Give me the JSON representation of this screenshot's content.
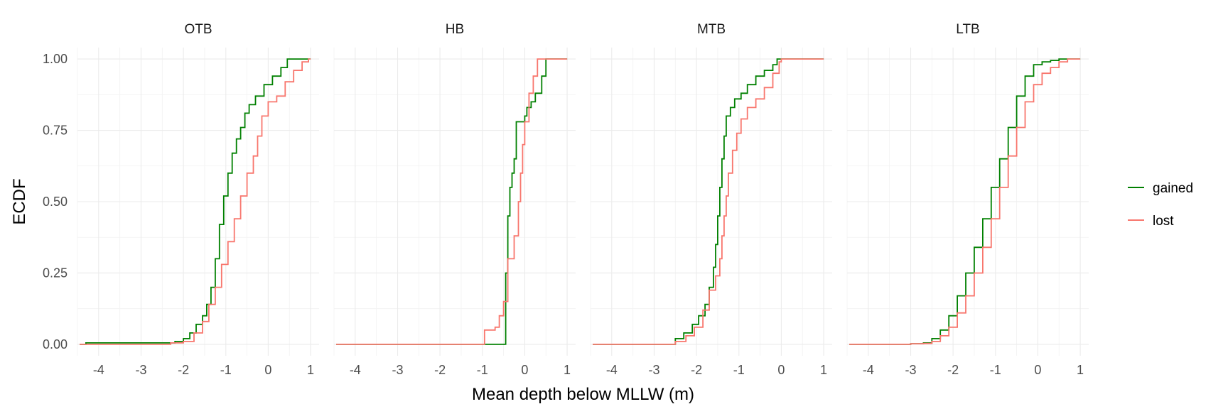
{
  "chart_data": {
    "type": "ecdf",
    "xlabel": "Mean depth below MLLW (m)",
    "ylabel": "ECDF",
    "xlim": [
      -4.5,
      1.2
    ],
    "ylim": [
      -0.04,
      1.04
    ],
    "x_ticks": [
      -4,
      -3,
      -2,
      -1,
      0,
      1
    ],
    "x_tick_labels": [
      "-4",
      "-3",
      "-2",
      "-1",
      "0",
      "1"
    ],
    "y_ticks": [
      0,
      0.25,
      0.5,
      0.75,
      1
    ],
    "y_tick_labels": [
      "0.00",
      "0.25",
      "0.50",
      "0.75",
      "1.00"
    ],
    "legend": {
      "position": "right",
      "entries": [
        "gained",
        "lost"
      ]
    },
    "colors": {
      "gained": "#008000",
      "lost": "#f8766d"
    },
    "panels": [
      {
        "title": "OTB",
        "series": [
          {
            "name": "gained",
            "points": [
              [
                -4.45,
                0.0
              ],
              [
                -4.3,
                0.005
              ],
              [
                -2.75,
                0.005
              ],
              [
                -2.2,
                0.01
              ],
              [
                -2.0,
                0.02
              ],
              [
                -1.85,
                0.04
              ],
              [
                -1.7,
                0.07
              ],
              [
                -1.55,
                0.1
              ],
              [
                -1.45,
                0.14
              ],
              [
                -1.35,
                0.2
              ],
              [
                -1.25,
                0.3
              ],
              [
                -1.15,
                0.42
              ],
              [
                -1.05,
                0.52
              ],
              [
                -0.95,
                0.6
              ],
              [
                -0.85,
                0.67
              ],
              [
                -0.75,
                0.72
              ],
              [
                -0.65,
                0.76
              ],
              [
                -0.55,
                0.81
              ],
              [
                -0.45,
                0.84
              ],
              [
                -0.3,
                0.87
              ],
              [
                -0.1,
                0.91
              ],
              [
                0.1,
                0.94
              ],
              [
                0.3,
                0.97
              ],
              [
                0.45,
                1.0
              ],
              [
                1.0,
                1.0
              ]
            ]
          },
          {
            "name": "lost",
            "points": [
              [
                -4.45,
                0.0
              ],
              [
                -2.8,
                0.0
              ],
              [
                -2.3,
                0.005
              ],
              [
                -2.0,
                0.01
              ],
              [
                -1.75,
                0.04
              ],
              [
                -1.55,
                0.08
              ],
              [
                -1.4,
                0.14
              ],
              [
                -1.25,
                0.2
              ],
              [
                -1.1,
                0.28
              ],
              [
                -0.95,
                0.36
              ],
              [
                -0.8,
                0.44
              ],
              [
                -0.65,
                0.52
              ],
              [
                -0.5,
                0.6
              ],
              [
                -0.35,
                0.66
              ],
              [
                -0.25,
                0.73
              ],
              [
                -0.15,
                0.8
              ],
              [
                0.0,
                0.85
              ],
              [
                0.2,
                0.87
              ],
              [
                0.4,
                0.92
              ],
              [
                0.6,
                0.96
              ],
              [
                0.8,
                0.99
              ],
              [
                0.95,
                1.0
              ],
              [
                1.0,
                1.0
              ]
            ]
          }
        ]
      },
      {
        "title": "HB",
        "series": [
          {
            "name": "gained",
            "points": [
              [
                -4.45,
                0.0
              ],
              [
                -0.48,
                0.0
              ],
              [
                -0.45,
                0.25
              ],
              [
                -0.4,
                0.45
              ],
              [
                -0.35,
                0.55
              ],
              [
                -0.3,
                0.6
              ],
              [
                -0.25,
                0.65
              ],
              [
                -0.2,
                0.78
              ],
              [
                0.0,
                0.8
              ],
              [
                0.05,
                0.83
              ],
              [
                0.15,
                0.85
              ],
              [
                0.25,
                0.88
              ],
              [
                0.4,
                0.94
              ],
              [
                0.5,
                1.0
              ],
              [
                1.0,
                1.0
              ]
            ]
          },
          {
            "name": "lost",
            "points": [
              [
                -4.45,
                0.0
              ],
              [
                -1.0,
                0.0
              ],
              [
                -0.95,
                0.05
              ],
              [
                -0.7,
                0.06
              ],
              [
                -0.6,
                0.1
              ],
              [
                -0.5,
                0.15
              ],
              [
                -0.4,
                0.3
              ],
              [
                -0.25,
                0.38
              ],
              [
                -0.15,
                0.5
              ],
              [
                -0.1,
                0.6
              ],
              [
                -0.05,
                0.7
              ],
              [
                0.0,
                0.78
              ],
              [
                0.1,
                0.88
              ],
              [
                0.2,
                0.94
              ],
              [
                0.3,
                1.0
              ],
              [
                1.0,
                1.0
              ]
            ]
          }
        ]
      },
      {
        "title": "MTB",
        "series": [
          {
            "name": "gained",
            "points": [
              [
                -4.45,
                0.0
              ],
              [
                -2.65,
                0.0
              ],
              [
                -2.5,
                0.02
              ],
              [
                -2.3,
                0.04
              ],
              [
                -2.1,
                0.07
              ],
              [
                -1.95,
                0.1
              ],
              [
                -1.8,
                0.14
              ],
              [
                -1.7,
                0.2
              ],
              [
                -1.6,
                0.27
              ],
              [
                -1.55,
                0.35
              ],
              [
                -1.5,
                0.45
              ],
              [
                -1.45,
                0.55
              ],
              [
                -1.4,
                0.65
              ],
              [
                -1.35,
                0.73
              ],
              [
                -1.3,
                0.8
              ],
              [
                -1.2,
                0.83
              ],
              [
                -1.1,
                0.86
              ],
              [
                -0.95,
                0.88
              ],
              [
                -0.8,
                0.91
              ],
              [
                -0.6,
                0.94
              ],
              [
                -0.4,
                0.96
              ],
              [
                -0.2,
                0.98
              ],
              [
                -0.1,
                1.0
              ],
              [
                1.0,
                1.0
              ]
            ]
          },
          {
            "name": "lost",
            "points": [
              [
                -4.45,
                0.0
              ],
              [
                -2.7,
                0.0
              ],
              [
                -2.5,
                0.01
              ],
              [
                -2.25,
                0.03
              ],
              [
                -2.05,
                0.06
              ],
              [
                -1.85,
                0.12
              ],
              [
                -1.7,
                0.19
              ],
              [
                -1.55,
                0.24
              ],
              [
                -1.45,
                0.3
              ],
              [
                -1.4,
                0.38
              ],
              [
                -1.35,
                0.45
              ],
              [
                -1.3,
                0.52
              ],
              [
                -1.25,
                0.6
              ],
              [
                -1.15,
                0.68
              ],
              [
                -1.05,
                0.74
              ],
              [
                -0.95,
                0.79
              ],
              [
                -0.8,
                0.83
              ],
              [
                -0.6,
                0.86
              ],
              [
                -0.4,
                0.9
              ],
              [
                -0.2,
                0.95
              ],
              [
                -0.05,
                0.99
              ],
              [
                0.0,
                1.0
              ],
              [
                1.0,
                1.0
              ]
            ]
          }
        ]
      },
      {
        "title": "LTB",
        "series": [
          {
            "name": "gained",
            "points": [
              [
                -4.45,
                0.0
              ],
              [
                -3.3,
                0.0
              ],
              [
                -3.0,
                0.002
              ],
              [
                -2.7,
                0.005
              ],
              [
                -2.5,
                0.02
              ],
              [
                -2.3,
                0.05
              ],
              [
                -2.1,
                0.1
              ],
              [
                -1.9,
                0.17
              ],
              [
                -1.7,
                0.25
              ],
              [
                -1.5,
                0.34
              ],
              [
                -1.3,
                0.44
              ],
              [
                -1.1,
                0.55
              ],
              [
                -0.9,
                0.65
              ],
              [
                -0.7,
                0.76
              ],
              [
                -0.5,
                0.87
              ],
              [
                -0.3,
                0.94
              ],
              [
                -0.1,
                0.98
              ],
              [
                0.1,
                0.99
              ],
              [
                0.3,
                0.995
              ],
              [
                0.5,
                1.0
              ],
              [
                1.0,
                1.0
              ]
            ]
          },
          {
            "name": "lost",
            "points": [
              [
                -4.45,
                0.0
              ],
              [
                -3.3,
                0.0
              ],
              [
                -3.0,
                0.002
              ],
              [
                -2.7,
                0.003
              ],
              [
                -2.5,
                0.01
              ],
              [
                -2.3,
                0.03
              ],
              [
                -2.1,
                0.06
              ],
              [
                -1.9,
                0.11
              ],
              [
                -1.7,
                0.17
              ],
              [
                -1.5,
                0.25
              ],
              [
                -1.3,
                0.34
              ],
              [
                -1.1,
                0.44
              ],
              [
                -0.9,
                0.55
              ],
              [
                -0.7,
                0.66
              ],
              [
                -0.5,
                0.76
              ],
              [
                -0.3,
                0.85
              ],
              [
                -0.1,
                0.91
              ],
              [
                0.1,
                0.95
              ],
              [
                0.3,
                0.97
              ],
              [
                0.5,
                0.99
              ],
              [
                0.7,
                1.0
              ],
              [
                1.0,
                1.0
              ]
            ]
          }
        ]
      }
    ]
  }
}
